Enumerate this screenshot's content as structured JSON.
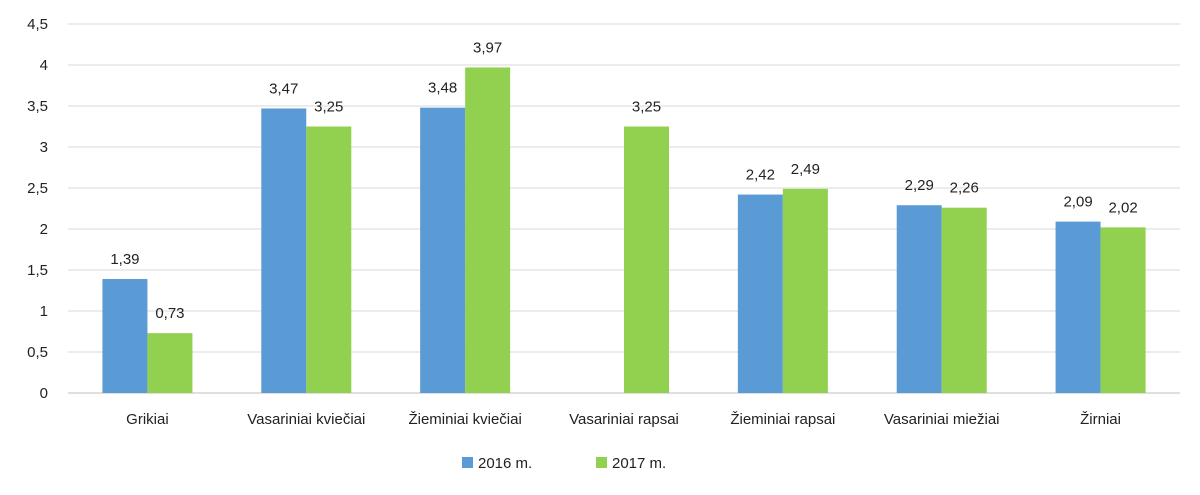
{
  "chart_data": {
    "type": "bar",
    "title": "",
    "xlabel": "",
    "ylabel": "",
    "ylim": [
      0,
      4.5
    ],
    "ytick_step": 0.5,
    "yticks": [
      "0",
      "0,5",
      "1",
      "1,5",
      "2",
      "2,5",
      "3",
      "3,5",
      "4",
      "4,5"
    ],
    "grid": true,
    "legend_position": "bottom",
    "categories": [
      "Grikiai",
      "Vasariniai kviečiai",
      "Žieminiai kviečiai",
      "Vasariniai rapsai",
      "Žieminiai rapsai",
      "Vasariniai miežiai",
      "Žirniai"
    ],
    "series": [
      {
        "name": "2016 m.",
        "color": "#5b9bd5",
        "values": [
          1.39,
          3.47,
          3.48,
          null,
          2.42,
          2.29,
          2.09
        ],
        "labels": [
          "1,39",
          "3,47",
          "3,48",
          "",
          "2,42",
          "2,29",
          "2,09"
        ]
      },
      {
        "name": "2017 m.",
        "color": "#92d050",
        "values": [
          0.73,
          3.25,
          3.97,
          3.25,
          2.49,
          2.26,
          2.02
        ],
        "labels": [
          "0,73",
          "3,25",
          "3,97",
          "3,25",
          "2,49",
          "2,26",
          "2,02"
        ]
      }
    ]
  }
}
